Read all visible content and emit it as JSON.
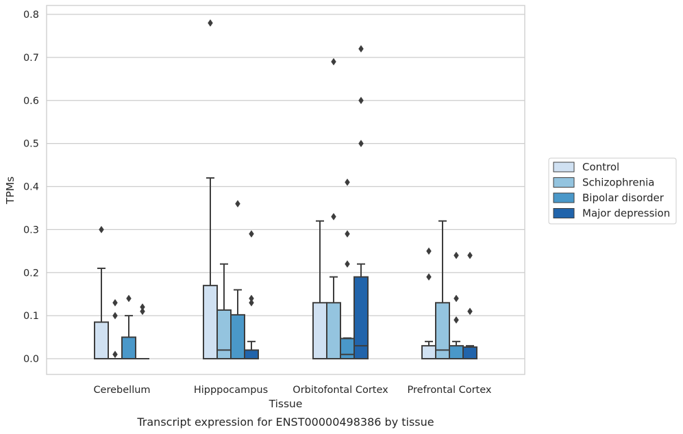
{
  "caption": "Transcript expression for ENST00000498386 by tissue",
  "chart_data": {
    "type": "box",
    "xlabel": "Tissue",
    "ylabel": "TPMs",
    "ylim": [
      -0.04,
      0.82
    ],
    "yticks": [
      "0.0",
      "0.1",
      "0.2",
      "0.3",
      "0.4",
      "0.5",
      "0.6",
      "0.7",
      "0.8"
    ],
    "grid": "horizontal",
    "legend_position": "right",
    "categories": [
      "Cerebellum",
      "Hipppocampus",
      "Orbitofontal Cortex",
      "Prefrontal Cortex"
    ],
    "series": [
      {
        "name": "Control",
        "color": "#d0e1f2",
        "boxes": [
          {
            "q1": 0.0,
            "median": 0.0,
            "q3": 0.085,
            "whisker_low": 0.0,
            "whisker_high": 0.21,
            "outliers": [
              0.3
            ]
          },
          {
            "q1": 0.0,
            "median": 0.0,
            "q3": 0.17,
            "whisker_low": 0.0,
            "whisker_high": 0.42,
            "outliers": [
              0.78
            ]
          },
          {
            "q1": 0.0,
            "median": 0.0,
            "q3": 0.13,
            "whisker_low": 0.0,
            "whisker_high": 0.32,
            "outliers": []
          },
          {
            "q1": 0.0,
            "median": 0.0,
            "q3": 0.03,
            "whisker_low": 0.0,
            "whisker_high": 0.04,
            "outliers": [
              0.19,
              0.25
            ]
          }
        ]
      },
      {
        "name": "Schizophrenia",
        "color": "#94c4df",
        "boxes": [
          {
            "q1": 0.0,
            "median": 0.0,
            "q3": 0.0,
            "whisker_low": 0.0,
            "whisker_high": 0.0,
            "outliers": [
              0.01,
              0.1,
              0.13
            ]
          },
          {
            "q1": 0.0,
            "median": 0.02,
            "q3": 0.113,
            "whisker_low": 0.0,
            "whisker_high": 0.22,
            "outliers": []
          },
          {
            "q1": 0.0,
            "median": 0.0,
            "q3": 0.13,
            "whisker_low": 0.0,
            "whisker_high": 0.19,
            "outliers": [
              0.33,
              0.69
            ]
          },
          {
            "q1": 0.0,
            "median": 0.02,
            "q3": 0.13,
            "whisker_low": 0.0,
            "whisker_high": 0.32,
            "outliers": []
          }
        ]
      },
      {
        "name": "Bipolar disorder",
        "color": "#4a98c9",
        "boxes": [
          {
            "q1": 0.0,
            "median": 0.0,
            "q3": 0.05,
            "whisker_low": 0.0,
            "whisker_high": 0.1,
            "outliers": [
              0.14
            ]
          },
          {
            "q1": 0.0,
            "median": 0.0,
            "q3": 0.102,
            "whisker_low": 0.0,
            "whisker_high": 0.16,
            "outliers": [
              0.36
            ]
          },
          {
            "q1": 0.0,
            "median": 0.01,
            "q3": 0.047,
            "whisker_low": 0.0,
            "whisker_high": 0.048,
            "outliers": [
              0.22,
              0.29,
              0.41
            ]
          },
          {
            "q1": 0.0,
            "median": 0.0,
            "q3": 0.03,
            "whisker_low": 0.0,
            "whisker_high": 0.04,
            "outliers": [
              0.09,
              0.14,
              0.24
            ]
          }
        ]
      },
      {
        "name": "Major depression",
        "color": "#2164ab",
        "boxes": [
          {
            "q1": 0.0,
            "median": 0.0,
            "q3": 0.0,
            "whisker_low": 0.0,
            "whisker_high": 0.0,
            "outliers": [
              0.11,
              0.12
            ]
          },
          {
            "q1": 0.0,
            "median": 0.0,
            "q3": 0.02,
            "whisker_low": 0.0,
            "whisker_high": 0.04,
            "outliers": [
              0.13,
              0.14,
              0.29
            ]
          },
          {
            "q1": 0.0,
            "median": 0.03,
            "q3": 0.19,
            "whisker_low": 0.0,
            "whisker_high": 0.22,
            "outliers": [
              0.5,
              0.6,
              0.72
            ]
          },
          {
            "q1": 0.0,
            "median": 0.0,
            "q3": 0.027,
            "whisker_low": 0.0,
            "whisker_high": 0.03,
            "outliers": [
              0.11,
              0.24
            ]
          }
        ]
      }
    ]
  }
}
